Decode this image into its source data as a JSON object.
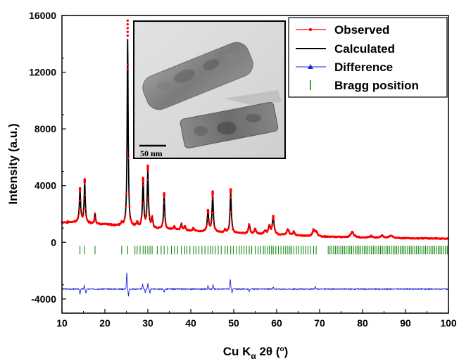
{
  "chart_data": {
    "type": "line",
    "title": "",
    "xlabel_parts": {
      "main": "Cu K",
      "sub": "α",
      "rest": " 2θ (",
      "deg": "o",
      "close": ")"
    },
    "ylabel": "Intensity (a.u.)",
    "xlim": [
      10,
      100
    ],
    "ylim": [
      -5000,
      16000
    ],
    "xticks": [
      10,
      20,
      30,
      40,
      50,
      60,
      70,
      80,
      90,
      100
    ],
    "xtick_labels": [
      "10",
      "20",
      "30",
      "40",
      "50",
      "60",
      "70",
      "80",
      "90",
      "100"
    ],
    "yticks": [
      -4000,
      0,
      4000,
      8000,
      12000,
      16000
    ],
    "ytick_labels": [
      "-4000",
      "0",
      "4000",
      "8000",
      "12000",
      "16000"
    ],
    "legend_position": "top-right",
    "legend": [
      "Observed",
      "Calculated",
      "Difference",
      "Bragg position"
    ],
    "inset_scale_label": "50 nm",
    "colors": {
      "observed": "#ff0000",
      "calculated": "#000000",
      "difference": "#2222dd",
      "bragg": "#008000"
    },
    "background": 1350,
    "background_x": [
      10,
      13,
      20,
      30,
      40,
      50,
      60,
      70,
      80,
      90,
      100
    ],
    "background_y": [
      1400,
      1420,
      1250,
      1000,
      800,
      650,
      520,
      400,
      330,
      290,
      260
    ],
    "peaks": [
      {
        "x": 14.2,
        "h": 2200,
        "w": 0.18
      },
      {
        "x": 15.3,
        "h": 2800,
        "w": 0.16
      },
      {
        "x": 17.7,
        "h": 700,
        "w": 0.15
      },
      {
        "x": 23.9,
        "h": 200,
        "w": 0.2
      },
      {
        "x": 25.3,
        "h": 13200,
        "w": 0.14
      },
      {
        "x": 27.5,
        "h": 300,
        "w": 0.2
      },
      {
        "x": 28.9,
        "h": 3200,
        "w": 0.18
      },
      {
        "x": 30.0,
        "h": 4000,
        "w": 0.17
      },
      {
        "x": 31.0,
        "h": 700,
        "w": 0.2
      },
      {
        "x": 33.8,
        "h": 2300,
        "w": 0.17
      },
      {
        "x": 36.2,
        "h": 250,
        "w": 0.2
      },
      {
        "x": 37.8,
        "h": 450,
        "w": 0.2
      },
      {
        "x": 38.6,
        "h": 300,
        "w": 0.2
      },
      {
        "x": 40.6,
        "h": 200,
        "w": 0.2
      },
      {
        "x": 44.0,
        "h": 1400,
        "w": 0.2
      },
      {
        "x": 45.1,
        "h": 2600,
        "w": 0.18
      },
      {
        "x": 48.0,
        "h": 200,
        "w": 0.2
      },
      {
        "x": 49.3,
        "h": 2800,
        "w": 0.18
      },
      {
        "x": 53.6,
        "h": 650,
        "w": 0.22
      },
      {
        "x": 55.0,
        "h": 350,
        "w": 0.22
      },
      {
        "x": 57.3,
        "h": 250,
        "w": 0.25
      },
      {
        "x": 58.3,
        "h": 600,
        "w": 0.25
      },
      {
        "x": 59.2,
        "h": 1200,
        "w": 0.25
      },
      {
        "x": 62.6,
        "h": 400,
        "w": 0.3
      },
      {
        "x": 64.0,
        "h": 250,
        "w": 0.3
      },
      {
        "x": 68.6,
        "h": 450,
        "w": 0.3
      },
      {
        "x": 69.2,
        "h": 300,
        "w": 0.3
      },
      {
        "x": 77.6,
        "h": 400,
        "w": 0.4
      },
      {
        "x": 82.0,
        "h": 120,
        "w": 0.4
      },
      {
        "x": 84.5,
        "h": 150,
        "w": 0.4
      },
      {
        "x": 86.6,
        "h": 180,
        "w": 0.4
      }
    ],
    "difference_offset": -3300,
    "difference_spikes": [
      {
        "x": 14.2,
        "d": -350
      },
      {
        "x": 15.2,
        "d": 250
      },
      {
        "x": 15.6,
        "d": -300
      },
      {
        "x": 25.1,
        "d": 1200
      },
      {
        "x": 25.5,
        "d": -500
      },
      {
        "x": 28.8,
        "d": 350
      },
      {
        "x": 29.4,
        "d": -250
      },
      {
        "x": 30.0,
        "d": 400
      },
      {
        "x": 30.5,
        "d": -300
      },
      {
        "x": 33.8,
        "d": -250
      },
      {
        "x": 44.0,
        "d": 250
      },
      {
        "x": 45.2,
        "d": 300
      },
      {
        "x": 49.2,
        "d": 700
      },
      {
        "x": 49.6,
        "d": -250
      },
      {
        "x": 53.6,
        "d": -150
      },
      {
        "x": 59.2,
        "d": 150
      },
      {
        "x": 69.0,
        "d": 150
      }
    ],
    "bragg_level": -550,
    "bragg_positions": [
      14.2,
      15.3,
      17.7,
      23.9,
      25.3,
      27.0,
      27.5,
      28.2,
      28.9,
      29.4,
      30.0,
      30.5,
      31.0,
      32.2,
      33.1,
      33.8,
      34.6,
      35.5,
      36.2,
      36.9,
      37.8,
      38.6,
      39.1,
      39.8,
      40.6,
      41.2,
      41.9,
      42.6,
      43.3,
      44.0,
      44.6,
      45.1,
      45.7,
      46.4,
      47.1,
      48.0,
      48.6,
      49.3,
      49.9,
      50.6,
      51.3,
      51.8,
      52.4,
      53.0,
      53.6,
      54.2,
      55.0,
      55.7,
      56.3,
      56.9,
      57.3,
      57.9,
      58.3,
      58.8,
      59.2,
      59.8,
      60.4,
      61.0,
      61.6,
      62.1,
      62.6,
      63.1,
      63.5,
      64.0,
      64.6,
      65.1,
      65.7,
      66.2,
      66.8,
      67.3,
      67.9,
      68.6,
      69.2
    ],
    "bragg_dense_range": [
      72.0,
      100.0
    ],
    "bragg_dense_step": 0.42
  }
}
